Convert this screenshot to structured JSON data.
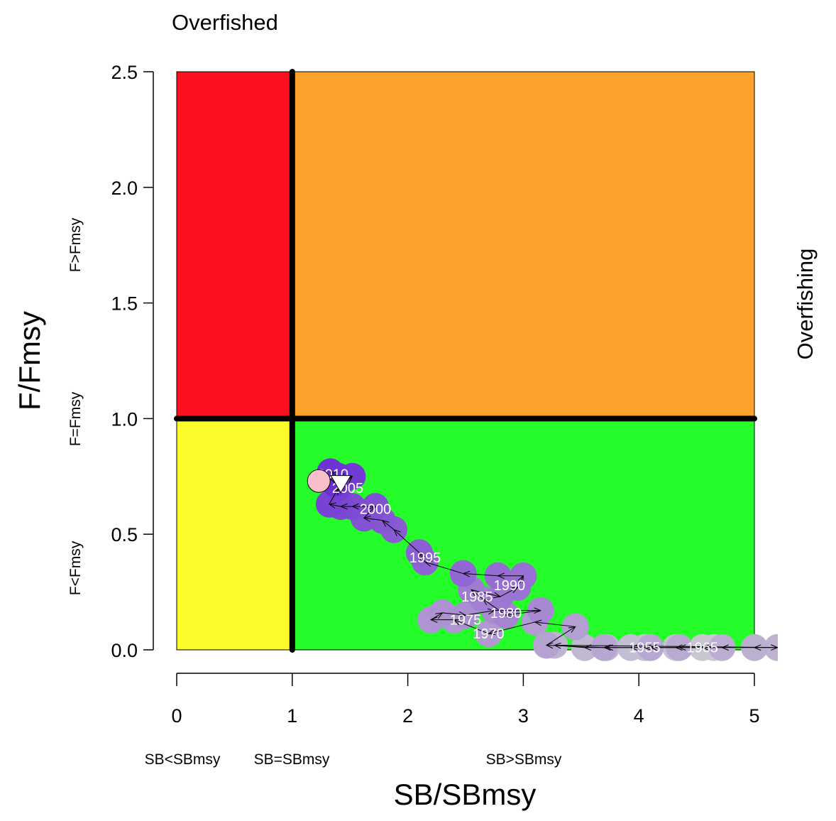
{
  "chart_data": {
    "type": "scatter",
    "title": "",
    "xlabel": "SB/SBmsy",
    "ylabel": "F/Fmsy",
    "xlim": [
      0,
      5
    ],
    "ylim": [
      0,
      2.5
    ],
    "x_ticks": [
      "0",
      "1",
      "2",
      "3",
      "4",
      "5"
    ],
    "y_ticks": [
      "0.0",
      "0.5",
      "1.0",
      "1.5",
      "2.0",
      "2.5"
    ],
    "x_categories": [
      "SB<SBmsy",
      "SB=SBmsy",
      "SB>SBmsy"
    ],
    "y_categories": [
      "F<Fmsy",
      "F=Fmsy",
      "F>Fmsy"
    ],
    "top_label": "Overfished",
    "right_label": "Overfishing",
    "reference_lines": {
      "x": 1,
      "y": 1
    },
    "grid": false,
    "zones": [
      {
        "name": "overfished-overfishing",
        "x": [
          0,
          1
        ],
        "y": [
          1,
          2.5
        ],
        "color": "#fc0f1e"
      },
      {
        "name": "overfishing-only",
        "x": [
          1,
          5
        ],
        "y": [
          1,
          2.5
        ],
        "color": "#fea22c"
      },
      {
        "name": "overfished-only",
        "x": [
          0,
          1
        ],
        "y": [
          0,
          1
        ],
        "color": "#fefb2b"
      },
      {
        "name": "healthy",
        "x": [
          1,
          5
        ],
        "y": [
          0,
          1
        ],
        "color": "#25fd2b"
      }
    ],
    "series": [
      {
        "points": [
          [
            4.65,
            0.01
          ],
          [
            4.55,
            0.01
          ],
          [
            4.32,
            0.01
          ],
          [
            4.05,
            0.01
          ],
          [
            3.93,
            0.01
          ],
          [
            3.72,
            0.01
          ],
          [
            3.53,
            0.01
          ],
          [
            3.27,
            0.02
          ],
          [
            5.2,
            0.01
          ],
          [
            5.0,
            0.01
          ],
          [
            4.72,
            0.01
          ],
          [
            4.35,
            0.01
          ],
          [
            4.1,
            0.01
          ],
          [
            3.7,
            0.01
          ],
          [
            3.2,
            0.02
          ],
          [
            3.45,
            0.1
          ],
          [
            3.1,
            0.12
          ],
          [
            2.7,
            0.07
          ],
          [
            2.4,
            0.13
          ],
          [
            2.2,
            0.13
          ],
          [
            2.3,
            0.16
          ],
          [
            2.5,
            0.15
          ],
          [
            2.75,
            0.17
          ],
          [
            3.15,
            0.17
          ],
          [
            2.85,
            0.15
          ],
          [
            2.65,
            0.22
          ],
          [
            2.55,
            0.26
          ],
          [
            2.8,
            0.23
          ],
          [
            2.95,
            0.27
          ],
          [
            3.0,
            0.32
          ],
          [
            2.78,
            0.32
          ],
          [
            2.48,
            0.33
          ],
          [
            2.15,
            0.38
          ],
          [
            2.1,
            0.42
          ],
          [
            1.88,
            0.52
          ],
          [
            1.78,
            0.56
          ],
          [
            1.62,
            0.57
          ],
          [
            1.72,
            0.62
          ],
          [
            1.52,
            0.62
          ],
          [
            1.42,
            0.62
          ],
          [
            1.32,
            0.63
          ],
          [
            1.4,
            0.7
          ],
          [
            1.52,
            0.75
          ],
          [
            1.4,
            0.75
          ],
          [
            1.33,
            0.77
          ],
          [
            1.37,
            0.72
          ]
        ],
        "year_labels": [
          {
            "year": "1955",
            "x": 4.05,
            "y": 0.01
          },
          {
            "year": "1965",
            "x": 4.55,
            "y": 0.01
          },
          {
            "year": "1970",
            "x": 2.7,
            "y": 0.07
          },
          {
            "year": "1975",
            "x": 2.5,
            "y": 0.13
          },
          {
            "year": "1980",
            "x": 2.85,
            "y": 0.16
          },
          {
            "year": "1985",
            "x": 2.6,
            "y": 0.23
          },
          {
            "year": "1990",
            "x": 2.88,
            "y": 0.28
          },
          {
            "year": "1995",
            "x": 2.15,
            "y": 0.4
          },
          {
            "year": "2000",
            "x": 1.72,
            "y": 0.61
          },
          {
            "year": "2005",
            "x": 1.48,
            "y": 0.7
          },
          {
            "year": "2010",
            "x": 1.35,
            "y": 0.76
          }
        ],
        "current_point": {
          "x": 1.23,
          "y": 0.73,
          "color": "#f9c0cb"
        },
        "previous_point": {
          "x": 1.42,
          "y": 0.72,
          "color": "#ffffff"
        },
        "colors": {
          "early": "#c9c9d1",
          "mid": "#a98ad2",
          "late": "#6a2fd4"
        }
      }
    ]
  }
}
